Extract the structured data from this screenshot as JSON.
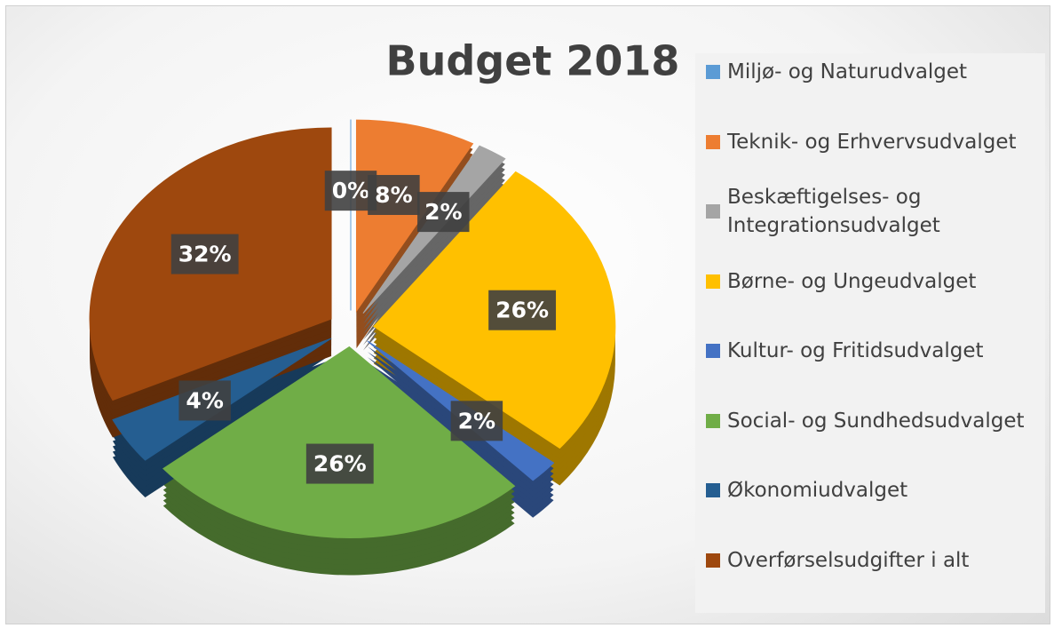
{
  "chart_data": {
    "type": "pie",
    "title": "Budget 2018",
    "categories": [
      "Miljø- og Naturudvalget",
      "Teknik- og Erhvervsudvalget",
      "Beskæftigelses- og Integrationsudvalget",
      "Børne- og Ungeudvalget",
      "Kultur- og Fritidsudvalget",
      "Social- og Sundhedsudvalget",
      "Økonomiudvalget",
      "Overførselsudgifter i alt"
    ],
    "values": [
      0,
      8,
      2,
      26,
      2,
      26,
      4,
      32
    ],
    "value_labels": [
      "0%",
      "8%",
      "2%",
      "26%",
      "2%",
      "26%",
      "4%",
      "32%"
    ],
    "colors": [
      "#5b9bd5",
      "#ed7d31",
      "#a5a5a5",
      "#ffc000",
      "#4472c4",
      "#70ad47",
      "#255e91",
      "#9e480e"
    ],
    "legend": "right"
  }
}
